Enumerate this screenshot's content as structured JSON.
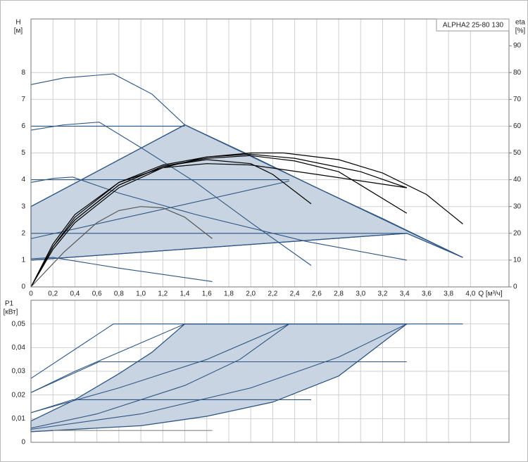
{
  "chart_data": [
    {
      "type": "line",
      "legend_label": "ALPHA2 25-80 130",
      "y_label": "H",
      "y_unit": "[м]",
      "y2_label": "eta",
      "y2_unit": "[%]",
      "x_label": "Q [м³/ч]",
      "xlim": [
        0,
        4.35
      ],
      "ylim": [
        0,
        10
      ],
      "y2lim": [
        0,
        100
      ],
      "grid": true,
      "xticks": [
        0,
        {
          "value": 0.2,
          "label": "0,2"
        },
        {
          "value": 0.4,
          "label": "0,4"
        },
        {
          "value": 0.6,
          "label": "0,6"
        },
        {
          "value": 0.8,
          "label": "0,8"
        },
        {
          "value": 1.0,
          "label": "1,0"
        },
        {
          "value": 1.2,
          "label": "1,2"
        },
        {
          "value": 1.4,
          "label": "1,4"
        },
        {
          "value": 1.6,
          "label": "1,6"
        },
        {
          "value": 1.8,
          "label": "1,8"
        },
        {
          "value": 2.0,
          "label": "2,0"
        },
        {
          "value": 2.2,
          "label": "2,2"
        },
        {
          "value": 2.4,
          "label": "2,4"
        },
        {
          "value": 2.6,
          "label": "2,6"
        },
        {
          "value": 2.8,
          "label": "2,8"
        },
        {
          "value": 3.0,
          "label": "3,0"
        },
        {
          "value": 3.2,
          "label": "3,2"
        },
        {
          "value": 3.4,
          "label": "3,4"
        },
        {
          "value": 3.6,
          "label": "3,6"
        },
        {
          "value": 3.8,
          "label": "3,8"
        },
        {
          "value": 4.0,
          "label": "4,0"
        }
      ],
      "yticks": [
        0,
        1,
        2,
        3,
        4,
        5,
        6,
        7,
        8
      ],
      "y2ticks": [
        0,
        10,
        20,
        30,
        40,
        50,
        60,
        70,
        80,
        90
      ],
      "series": [
        {
          "fill": "#c9d4e2",
          "color": "#2d5582",
          "x": [
            0,
            0,
            1.4,
            3.93,
            3.42
          ],
          "values": [
            1,
            3,
            6.05,
            1.1,
            2.0
          ]
        },
        {
          "color": "#2d5582",
          "x": [
            0,
            0.3,
            0.75,
            1.1,
            1.4,
            2.0,
            2.6,
            3.2,
            3.93
          ],
          "values": [
            7.55,
            7.8,
            7.95,
            7.2,
            6.05,
            4.9,
            3.7,
            2.55,
            1.1
          ]
        },
        {
          "color": "#2d5582",
          "x": [
            0,
            0.3,
            0.62,
            1.0,
            1.5,
            2.0,
            2.55
          ],
          "values": [
            5.85,
            6.05,
            6.15,
            5.2,
            3.9,
            2.4,
            0.8
          ]
        },
        {
          "color": "#2d5582",
          "x": [
            0,
            0.2,
            0.38,
            0.8,
            1.5,
            2.5,
            3.42
          ],
          "values": [
            3.9,
            4.05,
            4.1,
            3.5,
            2.7,
            1.7,
            1.0
          ]
        },
        {
          "color": "#2d5582",
          "x": [
            0,
            0.2,
            0.8,
            1.65
          ],
          "values": [
            1.05,
            1.1,
            0.7,
            0.2
          ]
        },
        {
          "color": "#2d5582",
          "x": [
            0,
            1.4
          ],
          "values": [
            6,
            6
          ]
        },
        {
          "color": "#2d5582",
          "x": [
            0,
            2.35
          ],
          "values": [
            4,
            4
          ]
        },
        {
          "color": "#2d5582",
          "x": [
            0,
            3.42
          ],
          "values": [
            2,
            2
          ]
        },
        {
          "color": "#2d5582",
          "x": [
            0,
            1.4
          ],
          "values": [
            3,
            6.05
          ]
        },
        {
          "color": "#2d5582",
          "x": [
            0,
            2.35
          ],
          "values": [
            1.8,
            3.95
          ]
        },
        {
          "color": "#2d5582",
          "x": [
            0,
            3.42
          ],
          "values": [
            1,
            2
          ]
        },
        {
          "color": "#000000",
          "axis": "y2",
          "x": [
            0,
            0.2,
            0.4,
            0.8,
            1.2,
            1.6,
            2.0,
            2.3,
            2.8,
            3.2,
            3.6,
            3.93
          ],
          "values": [
            0,
            14,
            24,
            37,
            44.5,
            48.5,
            50,
            50,
            47.5,
            42.5,
            34.5,
            23.5
          ]
        },
        {
          "color": "#000000",
          "axis": "y2",
          "x": [
            0,
            0.2,
            0.4,
            0.8,
            1.2,
            1.6,
            2.0,
            2.2,
            2.55
          ],
          "values": [
            0,
            15,
            25,
            38,
            45,
            47.5,
            46,
            42,
            31
          ]
        },
        {
          "color": "#000000",
          "axis": "y2",
          "x": [
            0,
            0.2,
            0.4,
            0.8,
            1.2,
            1.6,
            2.0,
            2.4,
            2.8,
            3.42
          ],
          "values": [
            0,
            15,
            25,
            38,
            45,
            48,
            49,
            47,
            43,
            27.5
          ]
        },
        {
          "color": "#000000",
          "axis": "y2",
          "x": [
            0,
            0.2,
            0.4,
            0.8,
            1.2,
            1.6,
            2.0,
            2.6,
            3.42
          ],
          "values": [
            0,
            16,
            27,
            39,
            44.5,
            46,
            45.5,
            42,
            37
          ]
        },
        {
          "color": "#000000",
          "axis": "y2",
          "x": [
            0,
            0.2,
            0.4,
            0.8,
            1.2,
            1.6,
            2.0,
            2.4,
            3.0,
            3.42
          ],
          "values": [
            0,
            15,
            26,
            39,
            45.5,
            48.5,
            49.5,
            48,
            43,
            37
          ]
        },
        {
          "color": "#555555",
          "axis": "y2",
          "x": [
            0,
            0.3,
            0.6,
            0.8,
            1.0,
            1.2,
            1.4,
            1.65
          ],
          "values": [
            0,
            13,
            24,
            28.5,
            30,
            29.5,
            26,
            18
          ]
        }
      ]
    },
    {
      "type": "line",
      "y_label": "P1",
      "y_unit": "[кВт]",
      "xlim": [
        0,
        4.35
      ],
      "ylim": [
        0,
        0.06
      ],
      "grid": true,
      "xticks": [
        0,
        0.2,
        0.4,
        0.6,
        0.8,
        1.0,
        1.2,
        1.4,
        1.6,
        1.8,
        2.0,
        2.2,
        2.4,
        2.6,
        2.8,
        3.0,
        3.2,
        3.4,
        3.6,
        3.8,
        4.0
      ],
      "yticks": [
        0,
        {
          "value": 0.01,
          "label": "0,01"
        },
        {
          "value": 0.02,
          "label": "0,02"
        },
        {
          "value": 0.03,
          "label": "0,03"
        },
        {
          "value": 0.04,
          "label": "0,04"
        },
        {
          "value": 0.05,
          "label": "0,05"
        }
      ],
      "series": [
        {
          "fill": "#c9d4e2",
          "color": "#2d5582",
          "x": [
            0,
            0.4,
            0.8,
            1.1,
            1.4,
            3.42,
            2.8,
            2.2,
            1.6,
            1.0,
            0
          ],
          "values": [
            0.009,
            0.018,
            0.029,
            0.038,
            0.05,
            0.05,
            0.028,
            0.017,
            0.011,
            0.007,
            0.0045
          ]
        },
        {
          "color": "#2d5582",
          "x": [
            0,
            0.75,
            3.93
          ],
          "values": [
            0.027,
            0.05,
            0.05
          ]
        },
        {
          "color": "#2d5582",
          "x": [
            0,
            0.4,
            0.8,
            1.4
          ],
          "values": [
            0.021,
            0.03,
            0.038,
            0.05
          ]
        },
        {
          "color": "#2d5582",
          "x": [
            0,
            0.8,
            1.6,
            2.35
          ],
          "values": [
            0.0125,
            0.023,
            0.035,
            0.05
          ]
        },
        {
          "color": "#2d5582",
          "x": [
            0,
            0.6,
            1.4,
            1.9,
            2.35
          ],
          "values": [
            0.006,
            0.012,
            0.024,
            0.035,
            0.05
          ]
        },
        {
          "color": "#2d5582",
          "x": [
            0,
            1.0,
            2.0,
            2.8,
            3.42
          ],
          "values": [
            0.0055,
            0.012,
            0.023,
            0.036,
            0.05
          ]
        },
        {
          "color": "#2d5582",
          "x": [
            0,
            0.62,
            3.42
          ],
          "values": [
            0.021,
            0.034,
            0.034
          ]
        },
        {
          "color": "#2d5582",
          "x": [
            0,
            0.38,
            2.55
          ],
          "values": [
            0.0125,
            0.018,
            0.018
          ]
        },
        {
          "color": "#888888",
          "x": [
            0.2,
            1.65
          ],
          "values": [
            0.005,
            0.005
          ]
        }
      ]
    }
  ]
}
